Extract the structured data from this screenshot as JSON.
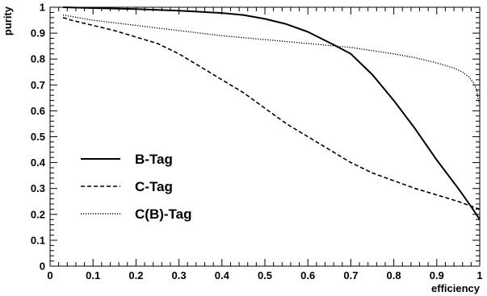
{
  "chart_data": {
    "type": "line",
    "xlabel": "efficiency",
    "ylabel": "purity",
    "xlim": [
      0,
      1
    ],
    "ylim": [
      0,
      1
    ],
    "xticks": [
      "0",
      "0.1",
      "0.2",
      "0.3",
      "0.4",
      "0.5",
      "0.6",
      "0.7",
      "0.8",
      "0.9",
      "1"
    ],
    "yticks": [
      "0",
      "0.1",
      "0.2",
      "0.3",
      "0.4",
      "0.5",
      "0.6",
      "0.7",
      "0.8",
      "0.9",
      "1"
    ],
    "grid": false,
    "legend_position": "lower-left",
    "series": [
      {
        "name": "B-Tag",
        "style": "solid",
        "color": "#000000",
        "x": [
          0.03,
          0.1,
          0.2,
          0.3,
          0.4,
          0.45,
          0.5,
          0.55,
          0.6,
          0.63,
          0.66,
          0.7,
          0.75,
          0.8,
          0.85,
          0.9,
          0.95,
          0.98,
          1.0
        ],
        "y": [
          1.0,
          0.997,
          0.993,
          0.987,
          0.978,
          0.97,
          0.955,
          0.935,
          0.905,
          0.88,
          0.855,
          0.82,
          0.74,
          0.64,
          0.53,
          0.41,
          0.3,
          0.23,
          0.18
        ]
      },
      {
        "name": "C-Tag",
        "style": "dashed",
        "color": "#000000",
        "x": [
          0.03,
          0.05,
          0.1,
          0.15,
          0.2,
          0.25,
          0.3,
          0.35,
          0.4,
          0.45,
          0.5,
          0.55,
          0.6,
          0.65,
          0.7,
          0.75,
          0.8,
          0.85,
          0.9,
          0.95,
          1.0
        ],
        "y": [
          0.96,
          0.95,
          0.93,
          0.91,
          0.885,
          0.86,
          0.82,
          0.77,
          0.72,
          0.67,
          0.61,
          0.55,
          0.5,
          0.45,
          0.4,
          0.36,
          0.33,
          0.3,
          0.275,
          0.25,
          0.22
        ]
      },
      {
        "name": "C(B)-Tag",
        "style": "dotted",
        "color": "#000000",
        "x": [
          0.03,
          0.1,
          0.2,
          0.3,
          0.4,
          0.5,
          0.6,
          0.7,
          0.8,
          0.85,
          0.9,
          0.94,
          0.96,
          0.975,
          0.985,
          0.993,
          0.998
        ],
        "y": [
          0.97,
          0.95,
          0.93,
          0.91,
          0.89,
          0.875,
          0.86,
          0.845,
          0.82,
          0.805,
          0.785,
          0.765,
          0.75,
          0.73,
          0.71,
          0.68,
          0.63
        ]
      }
    ]
  }
}
